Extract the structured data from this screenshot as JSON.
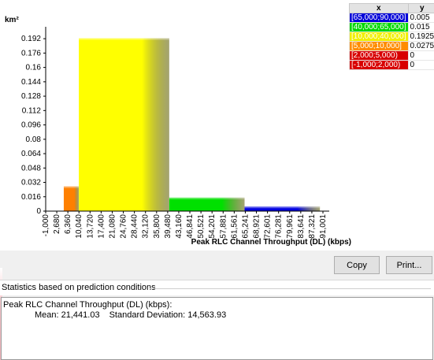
{
  "chart_data": {
    "type": "bar",
    "ylabel": "km²",
    "xlabel": "Peak RLC Channel Throughput (DL) (kbps)",
    "ylim": [
      0,
      0.2
    ],
    "yticks": [
      0,
      0.016,
      0.032,
      0.048,
      0.064,
      0.08,
      0.096,
      0.112,
      0.128,
      0.144,
      0.16,
      0.176,
      0.192
    ],
    "xticks": [
      "-1,000",
      "2,680",
      "6,360",
      "10,040",
      "13,720",
      "17,400",
      "21,080",
      "24,760",
      "28,440",
      "32,120",
      "35,800",
      "39,480",
      "43,160",
      "46,841",
      "50,521",
      "54,201",
      "57,881",
      "61,561",
      "65,241",
      "68,921",
      "72,601",
      "76,281",
      "79,961",
      "83,641",
      "87,321",
      "91,001"
    ],
    "x_range": [
      -1000,
      91001
    ],
    "bins": [
      {
        "label": "[-1,000;2,000)",
        "x0": -1000,
        "x1": 2000,
        "y": 0,
        "color": "#e00000"
      },
      {
        "label": "[2,000;5,000)",
        "x0": 2000,
        "x1": 5000,
        "y": 0,
        "color": "#e00000"
      },
      {
        "label": "[5,000;10,000]",
        "x0": 5000,
        "x1": 10000,
        "y": 0.0275,
        "color": "#ff8000"
      },
      {
        "label": "[10,000;40,000]",
        "x0": 10000,
        "x1": 40000,
        "y": 0.1925,
        "color": "#ffff00"
      },
      {
        "label": "[40,000;65,000]",
        "x0": 40000,
        "x1": 65000,
        "y": 0.015,
        "color": "#00e000"
      },
      {
        "label": "[65,000;90,000]",
        "x0": 65000,
        "x1": 90000,
        "y": 0.005,
        "color": "#0000e0"
      }
    ],
    "grid": false
  },
  "legend": {
    "header_x": "x",
    "header_y": "y",
    "rows": [
      {
        "label": "[65,000;90,000]",
        "y": "0.005",
        "color": "#0000d8"
      },
      {
        "label": "[40,000;65,000]",
        "y": "0.015",
        "color": "#00d800"
      },
      {
        "label": "[10,000;40,000]",
        "y": "0.1925",
        "color": "#f0f000"
      },
      {
        "label": "[5,000;10,000]",
        "y": "0.0275",
        "color": "#ff8c00"
      },
      {
        "label": "[2,000;5,000)",
        "y": "0",
        "color": "#d80000"
      },
      {
        "label": "[-1,000;2,000)",
        "y": "0",
        "color": "#d80000"
      }
    ]
  },
  "buttons": {
    "copy": "Copy",
    "print": "Print..."
  },
  "stats": {
    "header": "Statistics based on prediction conditions",
    "line1": "Peak RLC Channel Throughput (DL) (kbps):",
    "mean": "Mean: 21,441.03",
    "std": "Standard Deviation: 14,563.93"
  }
}
